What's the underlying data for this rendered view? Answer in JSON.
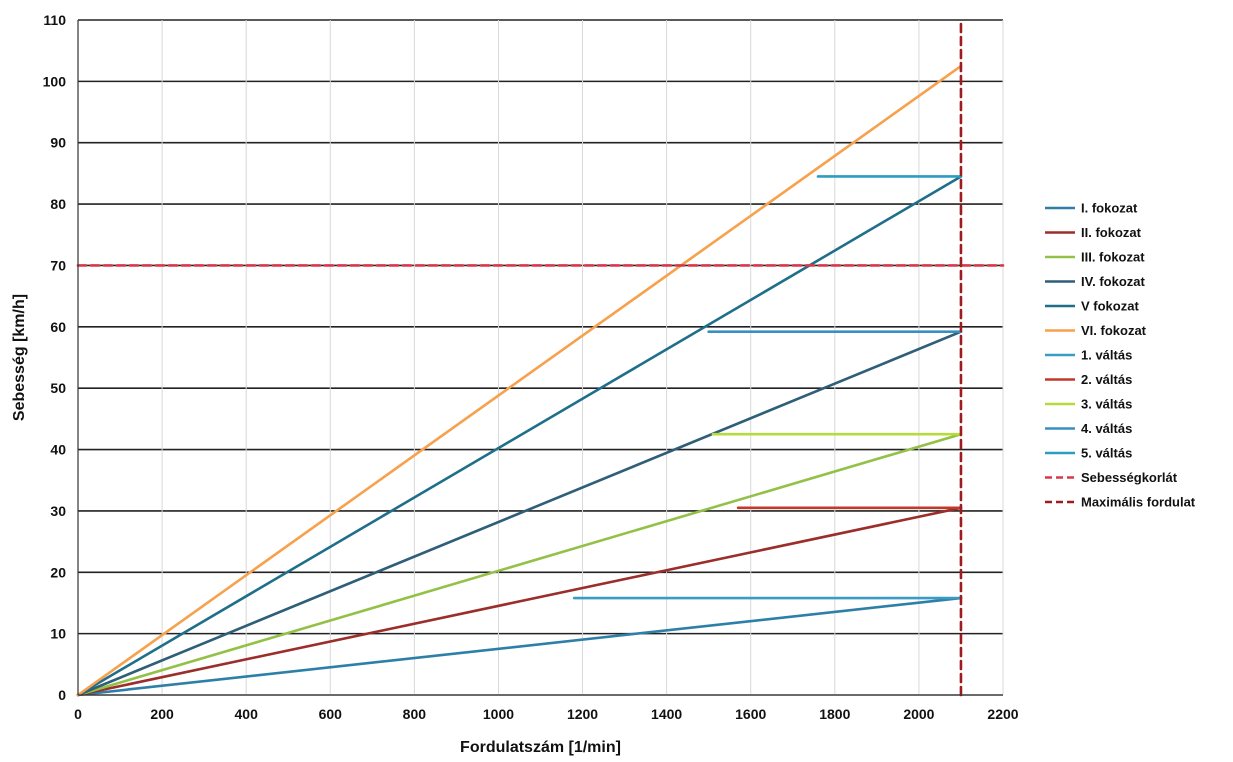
{
  "chart_data": {
    "type": "line",
    "title": "",
    "xlabel": "Fordulatszám [1/min]",
    "ylabel": "Sebesség [km/h]",
    "xlim": [
      0,
      2200
    ],
    "ylim": [
      0,
      110
    ],
    "xticks": [
      0,
      200,
      400,
      600,
      800,
      1000,
      1200,
      1400,
      1600,
      1800,
      2000,
      2200
    ],
    "yticks": [
      0,
      10,
      20,
      30,
      40,
      50,
      60,
      70,
      80,
      90,
      100,
      110
    ],
    "grid": true,
    "legend_position": "right",
    "series": [
      {
        "name": "I. fokozat",
        "color": "#2e7fa8",
        "dash": "solid",
        "points": [
          [
            0,
            0
          ],
          [
            2100,
            15.8
          ]
        ]
      },
      {
        "name": "II. fokozat",
        "color": "#9b2d2a",
        "dash": "solid",
        "points": [
          [
            0,
            0
          ],
          [
            2100,
            30.5
          ]
        ]
      },
      {
        "name": "III. fokozat",
        "color": "#93c147",
        "dash": "solid",
        "points": [
          [
            0,
            0
          ],
          [
            2100,
            42.5
          ]
        ]
      },
      {
        "name": "IV. fokozat",
        "color": "#2f5f78",
        "dash": "solid",
        "points": [
          [
            0,
            0
          ],
          [
            2100,
            59.2
          ]
        ]
      },
      {
        "name": "V  fokozat",
        "color": "#1f6f8b",
        "dash": "solid",
        "points": [
          [
            0,
            0
          ],
          [
            2100,
            84.5
          ]
        ]
      },
      {
        "name": "VI. fokozat",
        "color": "#f7a14d",
        "dash": "solid",
        "points": [
          [
            0,
            0
          ],
          [
            2100,
            102.5
          ]
        ]
      },
      {
        "name": "1. váltás",
        "color": "#3a9bc4",
        "dash": "solid",
        "points": [
          [
            1180,
            15.8
          ],
          [
            2100,
            15.8
          ]
        ]
      },
      {
        "name": "2. váltás",
        "color": "#c0392b",
        "dash": "solid",
        "points": [
          [
            1570,
            30.5
          ],
          [
            2100,
            30.5
          ]
        ]
      },
      {
        "name": "3. váltás",
        "color": "#b5dc3c",
        "dash": "solid",
        "points": [
          [
            1510,
            42.5
          ],
          [
            2100,
            42.5
          ]
        ]
      },
      {
        "name": "4. váltás",
        "color": "#3a8fc0",
        "dash": "solid",
        "points": [
          [
            1500,
            59.2
          ],
          [
            2100,
            59.2
          ]
        ]
      },
      {
        "name": "5. váltás",
        "color": "#2a9ec0",
        "dash": "solid",
        "points": [
          [
            1760,
            84.5
          ],
          [
            2100,
            84.5
          ]
        ]
      },
      {
        "name": "Sebességkorlát",
        "color": "#d9384a",
        "dash": "dashed",
        "points": [
          [
            0,
            70
          ],
          [
            2200,
            70
          ]
        ]
      },
      {
        "name": "Maximális fordulat",
        "color": "#9e1b1e",
        "dash": "dashed",
        "points": [
          [
            2100,
            0
          ],
          [
            2100,
            110
          ]
        ]
      }
    ]
  }
}
